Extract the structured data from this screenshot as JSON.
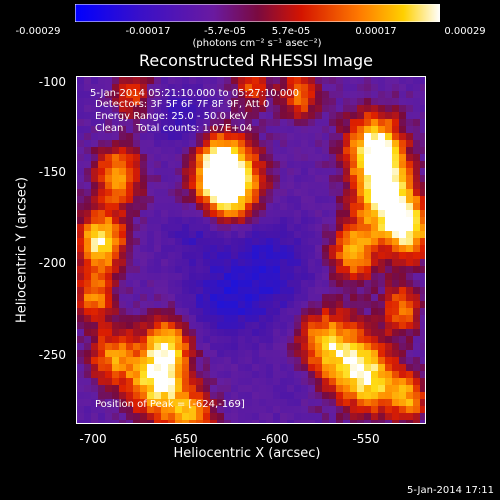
{
  "colorbar": {
    "ticks": [
      "-0.00029",
      "-0.00017",
      "-5.7e-05",
      "5.7e-05",
      "0.00017",
      "0.00029"
    ],
    "units": "(photons cm⁻² s⁻¹ asec⁻²)",
    "colors": [
      "#0000ff",
      "#3f00b4",
      "#6a1aa0",
      "#8a0a3a",
      "#ff2a00",
      "#ff9600",
      "#ffff00",
      "#ffffff"
    ]
  },
  "title": "Reconstructed RHESSI Image",
  "info": {
    "time_range": "5-Jan-2014 05:21:10.000 to 05:27:10.000",
    "detectors": "Detectors: 3F 5F 6F 7F 8F 9F, Att 0",
    "energy": "Energy Range: 25.0 - 50.0 keV",
    "clean": "Clean    Total counts: 1.07E+04"
  },
  "peak": "Position of Peak = [-624,-169]",
  "axes": {
    "xlabel": "Heliocentric X (arcsec)",
    "ylabel": "Heliocentric Y (arcsec)",
    "xticks": [
      "-700",
      "-650",
      "-600",
      "-550"
    ],
    "yticks": [
      "-100",
      "-150",
      "-200",
      "-250"
    ]
  },
  "timestamp": "5-Jan-2014 17:11"
}
